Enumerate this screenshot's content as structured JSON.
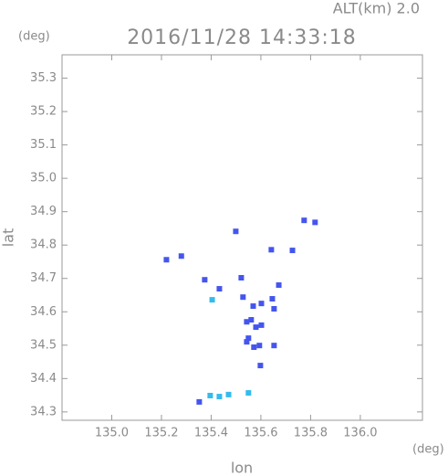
{
  "chart_data": {
    "type": "scatter",
    "title": "2016/11/28 14:33:18",
    "subtitle": "ALT(km) 2.0",
    "y_unit": "(deg)",
    "x_unit": "(deg)",
    "x_label": "lon",
    "y_label": "lat",
    "xlim": [
      134.8,
      136.25
    ],
    "ylim": [
      34.275,
      35.37
    ],
    "xticks": [
      {
        "value": 135.0,
        "label": "135.0"
      },
      {
        "value": 135.2,
        "label": "135.2"
      },
      {
        "value": 135.4,
        "label": "135.4"
      },
      {
        "value": 135.6,
        "label": "135.6"
      },
      {
        "value": 135.8,
        "label": "135.8"
      },
      {
        "value": 136.0,
        "label": "136.0"
      }
    ],
    "yticks": [
      {
        "value": 34.3,
        "label": "34.3"
      },
      {
        "value": 34.4,
        "label": "34.4"
      },
      34.5,
      34.6,
      34.7,
      34.8,
      34.9,
      {
        "value": 35.0,
        "label": "35.0"
      },
      35.1,
      35.2,
      35.3
    ],
    "series": [
      {
        "color": "#4455ee",
        "x": [
          135.22,
          135.28,
          135.374,
          135.433,
          135.521,
          135.528,
          135.569,
          135.602,
          135.646,
          135.672,
          135.653,
          135.543,
          135.561,
          135.58,
          135.602,
          135.55,
          135.572,
          135.594,
          135.653,
          135.598,
          135.642,
          135.774,
          135.818,
          135.499,
          135.727,
          135.543,
          135.352
        ],
        "values": [
          34.756,
          34.767,
          34.696,
          34.669,
          34.702,
          34.644,
          34.617,
          34.625,
          34.639,
          34.68,
          34.609,
          34.57,
          34.576,
          34.554,
          34.56,
          34.521,
          34.494,
          34.499,
          34.499,
          34.439,
          34.786,
          34.874,
          34.868,
          34.841,
          34.784,
          34.51,
          34.33
        ]
      },
      {
        "color": "#33bbee",
        "x": [
          135.404,
          135.396,
          135.433,
          135.47,
          135.55
        ],
        "values": [
          34.636,
          34.349,
          34.346,
          34.352,
          34.357
        ]
      }
    ]
  }
}
